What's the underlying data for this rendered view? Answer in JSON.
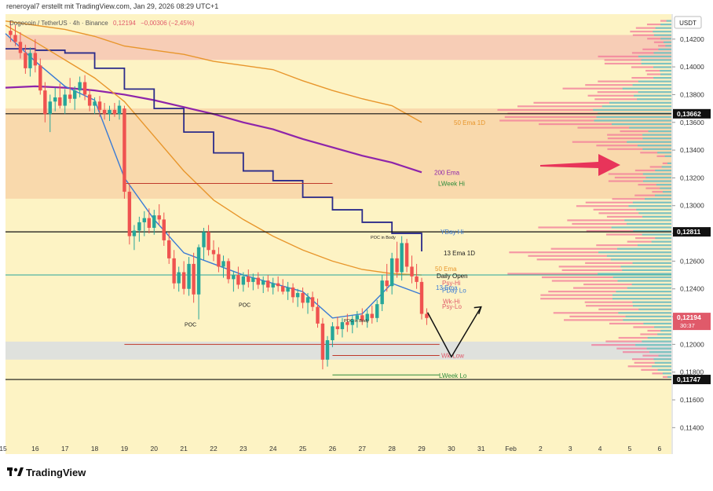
{
  "header": {
    "author_line": "reneroyal7 erstellt mit TradingView.com, Jan 29, 2026 08:29 UTC+1",
    "symbol_line": "Dogecoin / TetherUS · 4h · Binance",
    "last": "0,12194",
    "change": "−0,00306 (−2,45%)"
  },
  "footer": {
    "logo_text": "TradingView"
  },
  "price_axis": {
    "currency": "USDT",
    "ticks": [
      "0,14200",
      "0,14000",
      "0,13800",
      "0,13600",
      "0,13400",
      "0,13200",
      "0,13000",
      "0,12800",
      "0,12600",
      "0,12400",
      "0,12200",
      "0,12000",
      "0,11800",
      "0,11600",
      "0,11400"
    ],
    "highlights": [
      {
        "label": "0,13662",
        "bg": "#111111"
      },
      {
        "label": "0,12811",
        "bg": "#111111"
      },
      {
        "label": "0,12194",
        "bg": "#e05a6a"
      },
      {
        "label": "0,11747",
        "bg": "#111111"
      }
    ],
    "countdown": "30:37"
  },
  "time_axis": {
    "ticks": [
      "15",
      "16",
      "17",
      "18",
      "19",
      "20",
      "21",
      "22",
      "23",
      "24",
      "25",
      "26",
      "27",
      "28",
      "29",
      "30",
      "31",
      "Feb",
      "2",
      "3",
      "4",
      "5",
      "6"
    ]
  },
  "levels": {
    "ema50_1d": "50 Ema 1D",
    "ema200": "200 Ema",
    "lweek_hi": "LWeek Hi",
    "yday_hi": "YDay Hi",
    "ema13_1d": "13 Ema 1D",
    "ema50": "50 Ema",
    "daily_open": "Daily Open",
    "psy_hi": "Psy-Hi",
    "pday_lo": "PDay Lo",
    "ema13": "13 Ema",
    "wk_hi": "Wk-Hi",
    "psy_lo": "Psy-Lo",
    "wk_low": "Wk-Low",
    "lweek_lo": "LWeek Lo",
    "poc": "POC",
    "poc_in_body": "POC in Body"
  },
  "colors": {
    "bg": "#fdf3c4",
    "up": "#26a69a",
    "down": "#ef5350",
    "ema50_1d": "#e8962c",
    "ema200": "#8e24aa",
    "ema13_1d": "#2b2b8a",
    "ema13": "#3a7bd5",
    "arrow": "#e8345a"
  },
  "chart_data": {
    "type": "candlestick",
    "symbol": "Dogecoin / TetherUS",
    "interval": "4h",
    "exchange": "Binance",
    "last_price": 0.12194,
    "change": -0.00306,
    "change_pct": -2.45,
    "ylim": [
      0.113,
      0.1438
    ],
    "xlim_days": [
      15.0,
      37.4
    ],
    "candles": [
      {
        "t": 15.17,
        "o": 0.1426,
        "h": 0.1433,
        "l": 0.1418,
        "c": 0.1423
      },
      {
        "t": 15.33,
        "o": 0.1423,
        "h": 0.143,
        "l": 0.1415,
        "c": 0.1418
      },
      {
        "t": 15.5,
        "o": 0.1418,
        "h": 0.1425,
        "l": 0.1406,
        "c": 0.141
      },
      {
        "t": 15.67,
        "o": 0.141,
        "h": 0.1416,
        "l": 0.1395,
        "c": 0.1399
      },
      {
        "t": 15.83,
        "o": 0.1399,
        "h": 0.1414,
        "l": 0.1393,
        "c": 0.141
      },
      {
        "t": 16.0,
        "o": 0.141,
        "h": 0.142,
        "l": 0.1396,
        "c": 0.1401
      },
      {
        "t": 16.17,
        "o": 0.1401,
        "h": 0.1406,
        "l": 0.138,
        "c": 0.1383
      },
      {
        "t": 16.33,
        "o": 0.1383,
        "h": 0.1389,
        "l": 0.136,
        "c": 0.1366
      },
      {
        "t": 16.5,
        "o": 0.1366,
        "h": 0.138,
        "l": 0.1353,
        "c": 0.1375
      },
      {
        "t": 16.67,
        "o": 0.1375,
        "h": 0.1385,
        "l": 0.1368,
        "c": 0.1378
      },
      {
        "t": 16.83,
        "o": 0.1378,
        "h": 0.1388,
        "l": 0.137,
        "c": 0.1372
      },
      {
        "t": 17.0,
        "o": 0.1372,
        "h": 0.1384,
        "l": 0.1366,
        "c": 0.138
      },
      {
        "t": 17.17,
        "o": 0.138,
        "h": 0.1392,
        "l": 0.1374,
        "c": 0.1377
      },
      {
        "t": 17.33,
        "o": 0.1377,
        "h": 0.1386,
        "l": 0.1369,
        "c": 0.1383
      },
      {
        "t": 17.5,
        "o": 0.1383,
        "h": 0.1393,
        "l": 0.1378,
        "c": 0.1389
      },
      {
        "t": 17.67,
        "o": 0.1389,
        "h": 0.1394,
        "l": 0.1376,
        "c": 0.138
      },
      {
        "t": 17.83,
        "o": 0.138,
        "h": 0.1384,
        "l": 0.1368,
        "c": 0.1372
      },
      {
        "t": 18.0,
        "o": 0.1372,
        "h": 0.1378,
        "l": 0.1366,
        "c": 0.1375
      },
      {
        "t": 18.17,
        "o": 0.1375,
        "h": 0.1379,
        "l": 0.1364,
        "c": 0.1369
      },
      {
        "t": 18.33,
        "o": 0.1369,
        "h": 0.1374,
        "l": 0.1362,
        "c": 0.1366
      },
      {
        "t": 18.5,
        "o": 0.1366,
        "h": 0.1372,
        "l": 0.1361,
        "c": 0.1369
      },
      {
        "t": 18.67,
        "o": 0.1369,
        "h": 0.1374,
        "l": 0.1364,
        "c": 0.1366
      },
      {
        "t": 18.83,
        "o": 0.1366,
        "h": 0.1376,
        "l": 0.1362,
        "c": 0.1372
      },
      {
        "t": 19.0,
        "o": 0.137,
        "h": 0.1372,
        "l": 0.1305,
        "c": 0.131
      },
      {
        "t": 19.17,
        "o": 0.131,
        "h": 0.1316,
        "l": 0.1272,
        "c": 0.1278
      },
      {
        "t": 19.33,
        "o": 0.1278,
        "h": 0.1286,
        "l": 0.1268,
        "c": 0.1282
      },
      {
        "t": 19.5,
        "o": 0.1282,
        "h": 0.1292,
        "l": 0.1274,
        "c": 0.1288
      },
      {
        "t": 19.67,
        "o": 0.1288,
        "h": 0.1296,
        "l": 0.1278,
        "c": 0.1291
      },
      {
        "t": 19.83,
        "o": 0.1291,
        "h": 0.1298,
        "l": 0.128,
        "c": 0.1284
      },
      {
        "t": 20.0,
        "o": 0.1284,
        "h": 0.1297,
        "l": 0.1279,
        "c": 0.1293
      },
      {
        "t": 20.17,
        "o": 0.1293,
        "h": 0.1301,
        "l": 0.1286,
        "c": 0.129
      },
      {
        "t": 20.33,
        "o": 0.129,
        "h": 0.1295,
        "l": 0.1271,
        "c": 0.1275
      },
      {
        "t": 20.5,
        "o": 0.1275,
        "h": 0.1281,
        "l": 0.1258,
        "c": 0.1262
      },
      {
        "t": 20.67,
        "o": 0.1262,
        "h": 0.1268,
        "l": 0.124,
        "c": 0.1244
      },
      {
        "t": 20.83,
        "o": 0.1244,
        "h": 0.1256,
        "l": 0.1238,
        "c": 0.1252
      },
      {
        "t": 21.0,
        "o": 0.1252,
        "h": 0.126,
        "l": 0.1236,
        "c": 0.124
      },
      {
        "t": 21.17,
        "o": 0.124,
        "h": 0.1263,
        "l": 0.1235,
        "c": 0.1258
      },
      {
        "t": 21.33,
        "o": 0.1258,
        "h": 0.1266,
        "l": 0.123,
        "c": 0.1236
      },
      {
        "t": 21.5,
        "o": 0.1236,
        "h": 0.1272,
        "l": 0.1218,
        "c": 0.127
      },
      {
        "t": 21.67,
        "o": 0.127,
        "h": 0.1284,
        "l": 0.1261,
        "c": 0.1281
      },
      {
        "t": 21.83,
        "o": 0.1281,
        "h": 0.1286,
        "l": 0.1264,
        "c": 0.1268
      },
      {
        "t": 22.0,
        "o": 0.1268,
        "h": 0.1275,
        "l": 0.126,
        "c": 0.1265
      },
      {
        "t": 22.17,
        "o": 0.1265,
        "h": 0.127,
        "l": 0.1252,
        "c": 0.1256
      },
      {
        "t": 22.33,
        "o": 0.1256,
        "h": 0.1264,
        "l": 0.1248,
        "c": 0.126
      },
      {
        "t": 22.5,
        "o": 0.126,
        "h": 0.1262,
        "l": 0.1244,
        "c": 0.1247
      },
      {
        "t": 22.67,
        "o": 0.1247,
        "h": 0.1253,
        "l": 0.1238,
        "c": 0.125
      },
      {
        "t": 22.83,
        "o": 0.125,
        "h": 0.1256,
        "l": 0.124,
        "c": 0.1243
      },
      {
        "t": 23.0,
        "o": 0.1243,
        "h": 0.1252,
        "l": 0.1238,
        "c": 0.1249
      },
      {
        "t": 23.17,
        "o": 0.1249,
        "h": 0.1254,
        "l": 0.1241,
        "c": 0.1245
      },
      {
        "t": 23.33,
        "o": 0.1245,
        "h": 0.1251,
        "l": 0.1239,
        "c": 0.1248
      },
      {
        "t": 23.5,
        "o": 0.1248,
        "h": 0.1252,
        "l": 0.124,
        "c": 0.1243
      },
      {
        "t": 23.67,
        "o": 0.1243,
        "h": 0.1249,
        "l": 0.1237,
        "c": 0.1246
      },
      {
        "t": 23.83,
        "o": 0.1246,
        "h": 0.125,
        "l": 0.1238,
        "c": 0.1241
      },
      {
        "t": 24.0,
        "o": 0.1241,
        "h": 0.1248,
        "l": 0.1236,
        "c": 0.1244
      },
      {
        "t": 24.17,
        "o": 0.1244,
        "h": 0.1249,
        "l": 0.1238,
        "c": 0.1242
      },
      {
        "t": 24.33,
        "o": 0.1242,
        "h": 0.1247,
        "l": 0.1236,
        "c": 0.1238
      },
      {
        "t": 24.5,
        "o": 0.1238,
        "h": 0.1245,
        "l": 0.1232,
        "c": 0.1241
      },
      {
        "t": 24.67,
        "o": 0.1241,
        "h": 0.1244,
        "l": 0.123,
        "c": 0.1234
      },
      {
        "t": 24.83,
        "o": 0.1234,
        "h": 0.124,
        "l": 0.1227,
        "c": 0.1237
      },
      {
        "t": 25.0,
        "o": 0.1237,
        "h": 0.1241,
        "l": 0.1226,
        "c": 0.123
      },
      {
        "t": 25.17,
        "o": 0.123,
        "h": 0.1237,
        "l": 0.1222,
        "c": 0.1234
      },
      {
        "t": 25.33,
        "o": 0.1234,
        "h": 0.1238,
        "l": 0.1224,
        "c": 0.1227
      },
      {
        "t": 25.5,
        "o": 0.1227,
        "h": 0.1233,
        "l": 0.1212,
        "c": 0.1215
      },
      {
        "t": 25.67,
        "o": 0.1215,
        "h": 0.1219,
        "l": 0.1182,
        "c": 0.1189
      },
      {
        "t": 25.83,
        "o": 0.1189,
        "h": 0.1206,
        "l": 0.1184,
        "c": 0.1203
      },
      {
        "t": 26.0,
        "o": 0.1203,
        "h": 0.1216,
        "l": 0.1198,
        "c": 0.1213
      },
      {
        "t": 26.17,
        "o": 0.1213,
        "h": 0.122,
        "l": 0.1207,
        "c": 0.1211
      },
      {
        "t": 26.33,
        "o": 0.1211,
        "h": 0.1219,
        "l": 0.1205,
        "c": 0.1216
      },
      {
        "t": 26.5,
        "o": 0.1216,
        "h": 0.1222,
        "l": 0.1209,
        "c": 0.1214
      },
      {
        "t": 26.67,
        "o": 0.1214,
        "h": 0.1221,
        "l": 0.1208,
        "c": 0.1218
      },
      {
        "t": 26.83,
        "o": 0.1218,
        "h": 0.1224,
        "l": 0.1212,
        "c": 0.1221
      },
      {
        "t": 27.0,
        "o": 0.1221,
        "h": 0.1226,
        "l": 0.1214,
        "c": 0.1217
      },
      {
        "t": 27.17,
        "o": 0.1217,
        "h": 0.1225,
        "l": 0.1212,
        "c": 0.1222
      },
      {
        "t": 27.33,
        "o": 0.1222,
        "h": 0.1228,
        "l": 0.1215,
        "c": 0.1219
      },
      {
        "t": 27.5,
        "o": 0.1219,
        "h": 0.1232,
        "l": 0.1216,
        "c": 0.1229
      },
      {
        "t": 27.67,
        "o": 0.1229,
        "h": 0.125,
        "l": 0.1224,
        "c": 0.1246
      },
      {
        "t": 27.83,
        "o": 0.1246,
        "h": 0.1258,
        "l": 0.1238,
        "c": 0.1242
      },
      {
        "t": 28.0,
        "o": 0.1242,
        "h": 0.1266,
        "l": 0.1236,
        "c": 0.1262
      },
      {
        "t": 28.17,
        "o": 0.1262,
        "h": 0.1274,
        "l": 0.1248,
        "c": 0.1252
      },
      {
        "t": 28.33,
        "o": 0.1252,
        "h": 0.1278,
        "l": 0.1246,
        "c": 0.1273
      },
      {
        "t": 28.5,
        "o": 0.1273,
        "h": 0.1276,
        "l": 0.1252,
        "c": 0.1256
      },
      {
        "t": 28.67,
        "o": 0.1256,
        "h": 0.1264,
        "l": 0.1244,
        "c": 0.1249
      },
      {
        "t": 28.83,
        "o": 0.1249,
        "h": 0.1258,
        "l": 0.124,
        "c": 0.1245
      },
      {
        "t": 29.0,
        "o": 0.1245,
        "h": 0.1248,
        "l": 0.1218,
        "c": 0.1222
      },
      {
        "t": 29.17,
        "o": 0.1222,
        "h": 0.1226,
        "l": 0.1214,
        "c": 0.1219
      }
    ],
    "series": [
      {
        "name": "50 Ema 1D",
        "type": "line",
        "color": "#e8962c",
        "x": [
          15,
          16,
          17,
          18,
          19,
          20,
          21,
          22,
          23,
          24,
          25,
          26,
          27,
          28,
          29.0
        ],
        "y": [
          0.1433,
          0.143,
          0.1427,
          0.1422,
          0.1415,
          0.1412,
          0.1409,
          0.1404,
          0.1401,
          0.1398,
          0.139,
          0.1383,
          0.1377,
          0.1372,
          0.136
        ]
      },
      {
        "name": "200 Ema",
        "type": "line",
        "color": "#8e24aa",
        "x": [
          15,
          16,
          17,
          18,
          19,
          20,
          21,
          22,
          23,
          24,
          25,
          26,
          27,
          28,
          29.0
        ],
        "y": [
          0.1385,
          0.1386,
          0.1385,
          0.1383,
          0.138,
          0.1376,
          0.1371,
          0.1366,
          0.136,
          0.1355,
          0.1348,
          0.1342,
          0.1336,
          0.1331,
          0.1324
        ]
      },
      {
        "name": "13 Ema 1D",
        "type": "step",
        "color": "#2b2b8a",
        "x": [
          15,
          16,
          17,
          18,
          19,
          20,
          21,
          22,
          23,
          24,
          25,
          26,
          27,
          28,
          29.0
        ],
        "y": [
          0.1413,
          0.1412,
          0.141,
          0.1399,
          0.1384,
          0.137,
          0.1353,
          0.1338,
          0.1325,
          0.1318,
          0.1306,
          0.1297,
          0.1288,
          0.128,
          0.1267
        ]
      },
      {
        "name": "50 Ema",
        "type": "line",
        "color": "#e8962c",
        "x": [
          15,
          16,
          17,
          18,
          19,
          20,
          21,
          22,
          23,
          24,
          25,
          26,
          27,
          28,
          29.0
        ],
        "y": [
          0.143,
          0.1418,
          0.1405,
          0.1392,
          0.1375,
          0.135,
          0.1325,
          0.1304,
          0.129,
          0.1278,
          0.1268,
          0.126,
          0.1254,
          0.1251,
          0.125
        ]
      },
      {
        "name": "13 Ema",
        "type": "line",
        "color": "#3a7bd5",
        "x": [
          15,
          16,
          17,
          18,
          19,
          20,
          21,
          22,
          23,
          24,
          25,
          26,
          27,
          28,
          29.0
        ],
        "y": [
          0.1424,
          0.1404,
          0.1386,
          0.1376,
          0.132,
          0.129,
          0.1266,
          0.1258,
          0.125,
          0.1244,
          0.1238,
          0.1219,
          0.1222,
          0.1244,
          0.1236
        ]
      }
    ],
    "horizontal_levels": [
      {
        "label": "50 Ema 1D",
        "price": 0.136,
        "color": "#e8962c"
      },
      {
        "label": "200 Ema",
        "price": 0.1324,
        "color": "#8e24aa"
      },
      {
        "label": "LWeek Hi",
        "price": 0.1316,
        "color": "#2e8b3a"
      },
      {
        "label": "YDay Hi",
        "price": 0.12811,
        "color": "#3a7bd5"
      },
      {
        "label": "13 Ema 1D",
        "price": 0.1266,
        "color": "#222222"
      },
      {
        "label": "50 Ema",
        "price": 0.1252,
        "color": "#e8962c"
      },
      {
        "label": "Daily Open",
        "price": 0.125,
        "color": "#111111"
      },
      {
        "label": "Psy-Hi",
        "price": 0.1245,
        "color": "#e05a6a"
      },
      {
        "label": "PDay Lo",
        "price": 0.1239,
        "color": "#3a7bd5"
      },
      {
        "label": "13 Ema",
        "price": 0.124,
        "color": "#3a7bd5"
      },
      {
        "label": "Wk-Hi",
        "price": 0.123,
        "color": "#e05a6a"
      },
      {
        "label": "Psy-Lo",
        "price": 0.1227,
        "color": "#e05a6a"
      },
      {
        "label": "Wk-Low",
        "price": 0.1192,
        "color": "#e05a6a"
      },
      {
        "label": "LWeek Lo",
        "price": 0.1178,
        "color": "#2e8b3a"
      }
    ],
    "key_lines": [
      0.13662,
      0.12811,
      0.11747
    ],
    "zones": [
      {
        "from": 0.1405,
        "to": 0.1423,
        "color": "#f6c6b4"
      },
      {
        "from": 0.1305,
        "to": 0.137,
        "color": "#f8d4a8"
      },
      {
        "from": 0.1189,
        "to": 0.1202,
        "color": "#d9dde2"
      }
    ],
    "projection": [
      [
        29.2,
        0.1223
      ],
      [
        30.0,
        0.1191
      ],
      [
        31.0,
        0.1227
      ]
    ],
    "volume_profile_nodes": [
      {
        "price": 0.1425,
        "size": 0.25
      },
      {
        "price": 0.1405,
        "size": 0.45
      },
      {
        "price": 0.1385,
        "size": 0.6
      },
      {
        "price": 0.137,
        "size": 0.9
      },
      {
        "price": 0.1362,
        "size": 1.0
      },
      {
        "price": 0.1345,
        "size": 0.55
      },
      {
        "price": 0.132,
        "size": 0.4
      },
      {
        "price": 0.13,
        "size": 0.55
      },
      {
        "price": 0.1285,
        "size": 0.75
      },
      {
        "price": 0.1265,
        "size": 0.95
      },
      {
        "price": 0.125,
        "size": 0.9
      },
      {
        "price": 0.1235,
        "size": 0.8
      },
      {
        "price": 0.122,
        "size": 0.7
      },
      {
        "price": 0.12,
        "size": 0.45
      },
      {
        "price": 0.1185,
        "size": 0.25
      }
    ]
  }
}
